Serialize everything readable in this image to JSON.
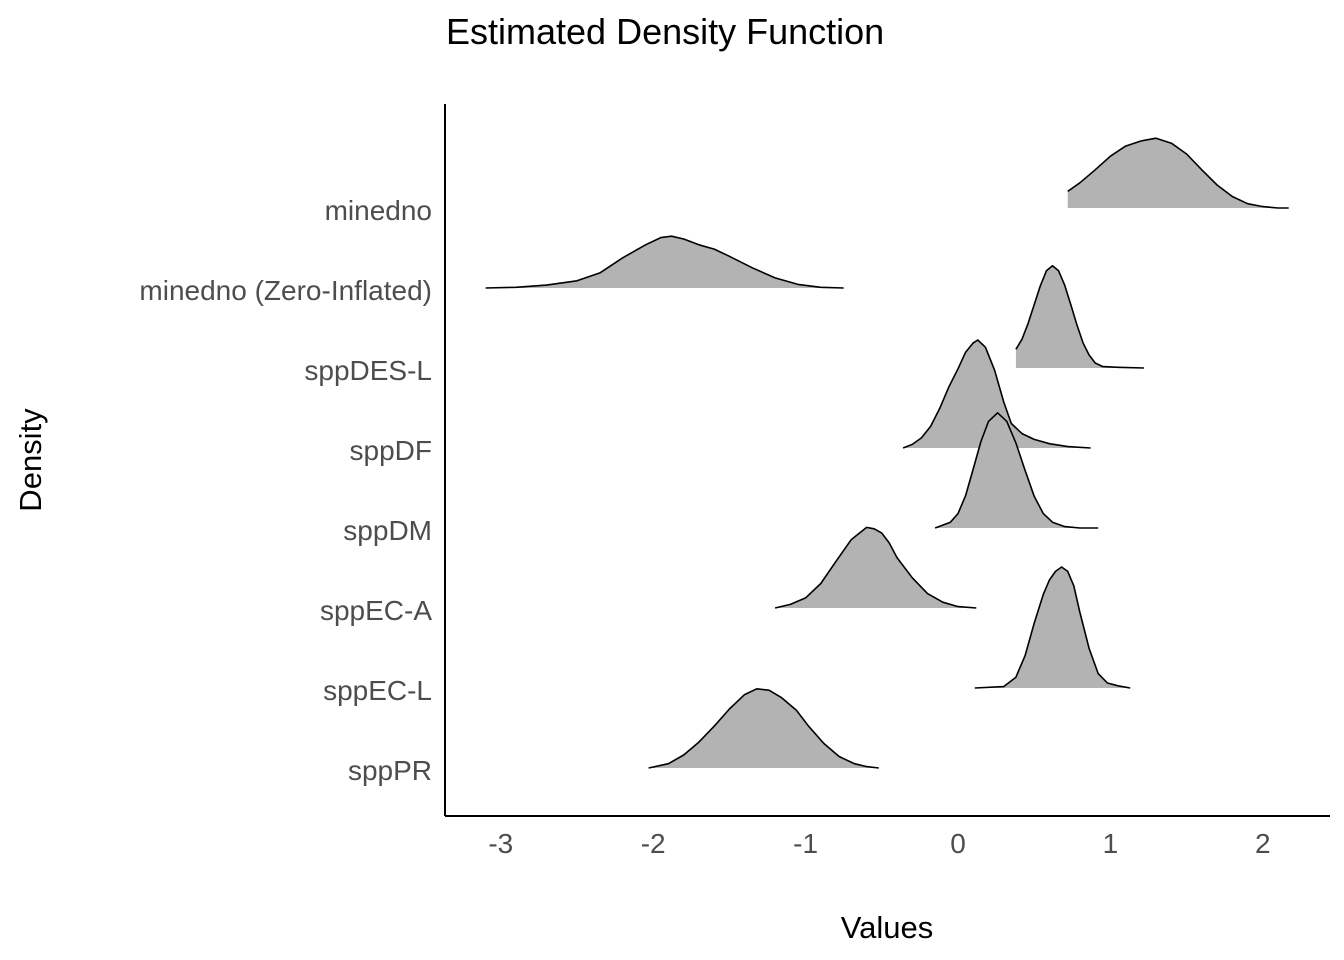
{
  "chart_data": {
    "type": "area",
    "subtype": "ridgeline-density",
    "title": "Estimated Density Function",
    "xlabel": "Values",
    "ylabel": "Density",
    "xlim": [
      -3.35,
      2.4
    ],
    "xticks": [
      -3,
      -2,
      -1,
      0,
      1,
      2
    ],
    "fill_color": "#b3b3b3",
    "line_color": "#000000",
    "grid": false,
    "legend": "none",
    "categories": [
      "sppPR",
      "sppEC-L",
      "sppEC-A",
      "sppDM",
      "sppDF",
      "sppDES-L",
      "minedno (Zero-Inflated)",
      "minedno"
    ],
    "series": [
      {
        "name": "minedno",
        "range": [
          0.72,
          2.17
        ],
        "points": [
          [
            0.72,
            0.23
          ],
          [
            0.8,
            0.35
          ],
          [
            0.9,
            0.53
          ],
          [
            1.0,
            0.72
          ],
          [
            1.1,
            0.86
          ],
          [
            1.2,
            0.93
          ],
          [
            1.3,
            0.97
          ],
          [
            1.4,
            0.9
          ],
          [
            1.5,
            0.75
          ],
          [
            1.6,
            0.53
          ],
          [
            1.7,
            0.32
          ],
          [
            1.8,
            0.16
          ],
          [
            1.9,
            0.06
          ],
          [
            2.0,
            0.02
          ],
          [
            2.1,
            0.0
          ],
          [
            2.17,
            0.0
          ]
        ]
      },
      {
        "name": "minedno (Zero-Inflated)",
        "range": [
          -3.1,
          -0.75
        ],
        "points": [
          [
            -3.1,
            0.0
          ],
          [
            -2.9,
            0.01
          ],
          [
            -2.7,
            0.04
          ],
          [
            -2.5,
            0.1
          ],
          [
            -2.35,
            0.21
          ],
          [
            -2.2,
            0.42
          ],
          [
            -2.05,
            0.6
          ],
          [
            -1.95,
            0.7
          ],
          [
            -1.88,
            0.72
          ],
          [
            -1.8,
            0.68
          ],
          [
            -1.7,
            0.6
          ],
          [
            -1.6,
            0.54
          ],
          [
            -1.5,
            0.44
          ],
          [
            -1.35,
            0.28
          ],
          [
            -1.2,
            0.14
          ],
          [
            -1.05,
            0.05
          ],
          [
            -0.9,
            0.01
          ],
          [
            -0.75,
            0.0
          ]
        ]
      },
      {
        "name": "sppDES-L",
        "range": [
          0.38,
          1.22
        ],
        "points": [
          [
            0.38,
            0.26
          ],
          [
            0.42,
            0.4
          ],
          [
            0.46,
            0.62
          ],
          [
            0.5,
            0.88
          ],
          [
            0.54,
            1.14
          ],
          [
            0.58,
            1.35
          ],
          [
            0.62,
            1.42
          ],
          [
            0.66,
            1.35
          ],
          [
            0.7,
            1.15
          ],
          [
            0.74,
            0.88
          ],
          [
            0.78,
            0.6
          ],
          [
            0.82,
            0.35
          ],
          [
            0.86,
            0.18
          ],
          [
            0.9,
            0.07
          ],
          [
            0.95,
            0.02
          ],
          [
            1.05,
            0.01
          ],
          [
            1.22,
            0.0
          ]
        ]
      },
      {
        "name": "sppDF",
        "range": [
          -0.36,
          0.87
        ],
        "points": [
          [
            -0.36,
            0.0
          ],
          [
            -0.3,
            0.05
          ],
          [
            -0.24,
            0.14
          ],
          [
            -0.18,
            0.3
          ],
          [
            -0.12,
            0.55
          ],
          [
            -0.06,
            0.85
          ],
          [
            0.0,
            1.1
          ],
          [
            0.05,
            1.33
          ],
          [
            0.1,
            1.46
          ],
          [
            0.13,
            1.5
          ],
          [
            0.18,
            1.4
          ],
          [
            0.24,
            1.08
          ],
          [
            0.3,
            0.64
          ],
          [
            0.35,
            0.34
          ],
          [
            0.42,
            0.2
          ],
          [
            0.5,
            0.12
          ],
          [
            0.6,
            0.06
          ],
          [
            0.72,
            0.02
          ],
          [
            0.87,
            0.0
          ]
        ]
      },
      {
        "name": "sppDM",
        "range": [
          -0.15,
          0.92
        ],
        "points": [
          [
            -0.15,
            0.0
          ],
          [
            -0.05,
            0.08
          ],
          [
            0.0,
            0.2
          ],
          [
            0.05,
            0.45
          ],
          [
            0.1,
            0.82
          ],
          [
            0.15,
            1.2
          ],
          [
            0.2,
            1.48
          ],
          [
            0.26,
            1.6
          ],
          [
            0.32,
            1.48
          ],
          [
            0.38,
            1.18
          ],
          [
            0.44,
            0.8
          ],
          [
            0.5,
            0.44
          ],
          [
            0.56,
            0.2
          ],
          [
            0.62,
            0.08
          ],
          [
            0.7,
            0.02
          ],
          [
            0.8,
            0.0
          ],
          [
            0.92,
            0.0
          ]
        ]
      },
      {
        "name": "sppEC-A",
        "range": [
          -1.2,
          0.12
        ],
        "points": [
          [
            -1.2,
            0.0
          ],
          [
            -1.1,
            0.05
          ],
          [
            -1.0,
            0.14
          ],
          [
            -0.9,
            0.34
          ],
          [
            -0.8,
            0.65
          ],
          [
            -0.7,
            0.95
          ],
          [
            -0.6,
            1.12
          ],
          [
            -0.55,
            1.1
          ],
          [
            -0.5,
            1.04
          ],
          [
            -0.45,
            0.9
          ],
          [
            -0.4,
            0.7
          ],
          [
            -0.3,
            0.42
          ],
          [
            -0.2,
            0.2
          ],
          [
            -0.1,
            0.08
          ],
          [
            0.0,
            0.02
          ],
          [
            0.12,
            0.0
          ]
        ]
      },
      {
        "name": "sppEC-L",
        "range": [
          0.11,
          1.13
        ],
        "points": [
          [
            0.11,
            0.0
          ],
          [
            0.3,
            0.02
          ],
          [
            0.38,
            0.15
          ],
          [
            0.44,
            0.45
          ],
          [
            0.5,
            0.9
          ],
          [
            0.56,
            1.3
          ],
          [
            0.6,
            1.5
          ],
          [
            0.64,
            1.62
          ],
          [
            0.68,
            1.68
          ],
          [
            0.72,
            1.62
          ],
          [
            0.76,
            1.42
          ],
          [
            0.8,
            1.05
          ],
          [
            0.86,
            0.55
          ],
          [
            0.92,
            0.2
          ],
          [
            0.98,
            0.07
          ],
          [
            1.05,
            0.03
          ],
          [
            1.13,
            0.0
          ]
        ]
      },
      {
        "name": "sppPR",
        "range": [
          -2.03,
          -0.52
        ],
        "points": [
          [
            -2.03,
            0.0
          ],
          [
            -1.9,
            0.06
          ],
          [
            -1.8,
            0.18
          ],
          [
            -1.7,
            0.36
          ],
          [
            -1.6,
            0.58
          ],
          [
            -1.5,
            0.82
          ],
          [
            -1.4,
            1.02
          ],
          [
            -1.32,
            1.1
          ],
          [
            -1.24,
            1.08
          ],
          [
            -1.16,
            0.98
          ],
          [
            -1.06,
            0.8
          ],
          [
            -0.98,
            0.58
          ],
          [
            -0.88,
            0.34
          ],
          [
            -0.78,
            0.16
          ],
          [
            -0.68,
            0.06
          ],
          [
            -0.6,
            0.02
          ],
          [
            -0.52,
            0.0
          ]
        ]
      }
    ]
  }
}
